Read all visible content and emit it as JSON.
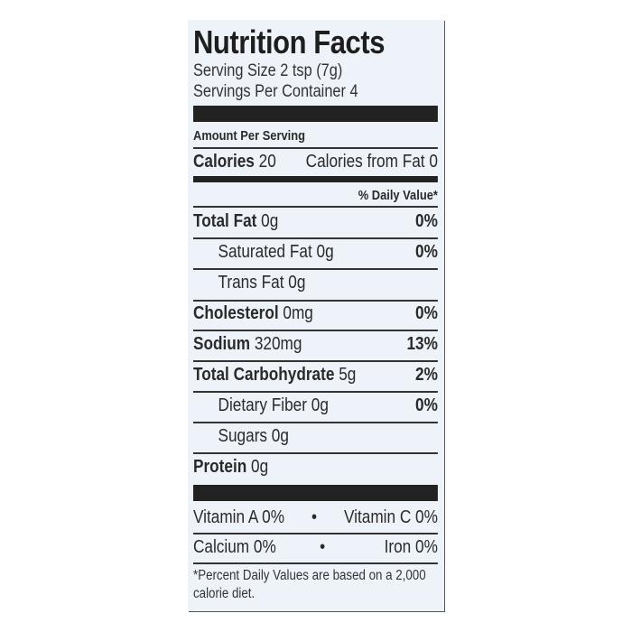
{
  "title": "Nutrition Facts",
  "serving_size": "Serving Size 2 tsp (7g)",
  "servings_per_container": "Servings Per Container 4",
  "amount_per_serving": "Amount Per Serving",
  "calories": {
    "label": "Calories",
    "value": "20",
    "from_fat": "Calories from Fat 0"
  },
  "daily_value_header": "% Daily Value*",
  "nutrients": [
    {
      "label": "Total Fat",
      "amount": "0g",
      "dv": "0%"
    },
    {
      "label": "Saturated Fat",
      "amount": "0g",
      "dv": "0%"
    },
    {
      "label": "Trans Fat",
      "amount": "0g",
      "dv": ""
    },
    {
      "label": "Cholesterol",
      "amount": "0mg",
      "dv": "0%"
    },
    {
      "label": "Sodium",
      "amount": "320mg",
      "dv": "13%"
    },
    {
      "label": "Total Carbohydrate",
      "amount": "5g",
      "dv": "2%"
    },
    {
      "label": "Dietary Fiber",
      "amount": "0g",
      "dv": "0%"
    },
    {
      "label": "Sugars",
      "amount": "0g",
      "dv": ""
    },
    {
      "label": "Protein",
      "amount": "0g",
      "dv": ""
    }
  ],
  "vitamins": [
    {
      "left": "Vitamin A 0%",
      "right": "Vitamin C 0%"
    },
    {
      "left": "Calcium 0%",
      "right": "Iron 0%"
    }
  ],
  "bullet": "•",
  "footnote": "*Percent Daily Values are based on a 2,000 calorie diet."
}
